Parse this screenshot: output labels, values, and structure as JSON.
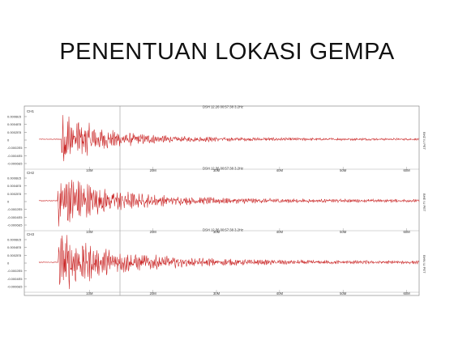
{
  "slide": {
    "title": "PENENTUAN LOKASI GEMPA"
  },
  "chart_data": {
    "type": "line",
    "title": "",
    "xlabel": "",
    "ylabel": "",
    "x_tick_labels": [
      "10M",
      "20M",
      "30M",
      "40M",
      "50M",
      "60M"
    ],
    "grid": false,
    "line_color": "#c81e1e",
    "panels": [
      {
        "channel_label": "CH1",
        "header": "DSH 12.26 00:57:38 3.2Hz",
        "side_label": "BHZ IU PET",
        "y_tick_labels": [
          "0.0006E5",
          "0.0004E5",
          "0.0002E5",
          "0",
          "-0.0002E5",
          "-0.0004E5",
          "-0.0006E5"
        ],
        "signal": {
          "onset": 0.06,
          "peak": 1.0,
          "decay": 0.22,
          "noise": 0.04
        }
      },
      {
        "channel_label": "CH2",
        "header": "DSH 12.26 00:57:38 3.2Hz",
        "side_label": "BHE IU PET",
        "y_tick_labels": [
          "0.0006E5",
          "0.0004E5",
          "0.0002E5",
          "0",
          "-0.0002E5",
          "-0.0004E5",
          "-0.0006E5"
        ],
        "signal": {
          "onset": 0.05,
          "peak": 1.0,
          "decay": 0.28,
          "noise": 0.05
        }
      },
      {
        "channel_label": "CH3",
        "header": "DSH 12.26 00:57:38 3.2Hz",
        "side_label": "BHN IU PET",
        "y_tick_labels": [
          "0.0006E5",
          "0.0004E5",
          "0.0002E5",
          "0",
          "-0.0002E5",
          "-0.0004E5",
          "-0.0006E5"
        ],
        "signal": {
          "onset": 0.05,
          "peak": 1.0,
          "decay": 0.32,
          "noise": 0.05
        }
      }
    ]
  }
}
